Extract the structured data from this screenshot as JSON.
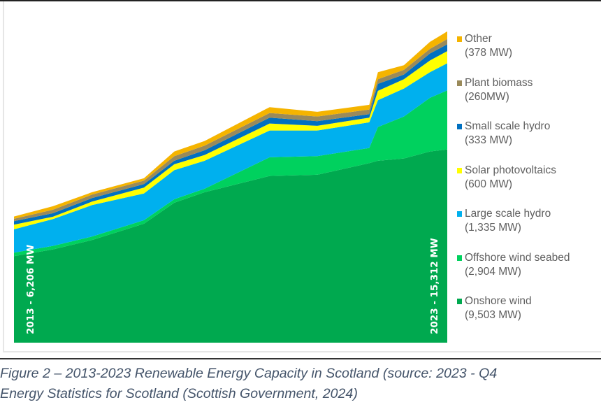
{
  "chart_data": {
    "type": "area",
    "stacked": true,
    "title": "",
    "xlabel": "",
    "ylabel": "",
    "x": [
      2013.0,
      2013.9,
      2014.8,
      2016.0,
      2016.7,
      2017.4,
      2018.9,
      2020.0,
      2021.2,
      2021.4,
      2022.0,
      2022.6,
      2023.0
    ],
    "xlim": [
      2013,
      2023
    ],
    "ylim": [
      0,
      16800
    ],
    "grid": false,
    "legend_position": "right",
    "series": [
      {
        "name": "Onshore wind",
        "legend_value": "(9,503 MW)",
        "color": "#00a94f",
        "values": [
          4256,
          4588,
          5047,
          5850,
          6882,
          7398,
          8201,
          8258,
          8832,
          8947,
          9061,
          9405,
          9503
        ]
      },
      {
        "name": "Offshore wind seabed",
        "legend_value": "(2,904 MW)",
        "color": "#00d15e",
        "values": [
          172,
          172,
          172,
          172,
          172,
          172,
          918,
          918,
          746,
          1663,
          2065,
          2638,
          2904
        ]
      },
      {
        "name": "Large scale hydro",
        "legend_value": "(1,335 MW)",
        "color": "#00b0ee",
        "values": [
          1147,
          1319,
          1548,
          1319,
          1434,
          1376,
          1319,
          1262,
          1262,
          1319,
          1376,
          1262,
          1335
        ]
      },
      {
        "name": "Solar photovoltaics",
        "legend_value": "(600 MW)",
        "color": "#ffff00",
        "values": [
          229,
          115,
          172,
          287,
          287,
          287,
          344,
          229,
          229,
          459,
          459,
          574,
          600
        ]
      },
      {
        "name": "Small scale hydro",
        "legend_value": "(333 MW)",
        "color": "#0070c0",
        "values": [
          172,
          172,
          172,
          172,
          172,
          229,
          287,
          229,
          172,
          344,
          229,
          344,
          333
        ]
      },
      {
        "name": "Plant biomass",
        "legend_value": "(260MW)",
        "color": "#9a8a5a",
        "values": [
          115,
          172,
          172,
          172,
          229,
          229,
          229,
          229,
          229,
          229,
          229,
          229,
          260
        ]
      },
      {
        "name": "Other",
        "legend_value": "(378 MW)",
        "color": "#f5b400",
        "values": [
          115,
          172,
          115,
          115,
          229,
          229,
          287,
          229,
          229,
          344,
          229,
          344,
          378
        ]
      }
    ],
    "annotations": {
      "start": "2013 - 6,206 MW",
      "end": "2023 - 15,312 MW"
    }
  },
  "caption": {
    "line1": "Figure 2 – 2013-2023 Renewable Energy Capacity in Scotland (source: 2023 - Q4",
    "line2": "Energy Statistics for Scotland (Scottish Government, 2024)"
  }
}
